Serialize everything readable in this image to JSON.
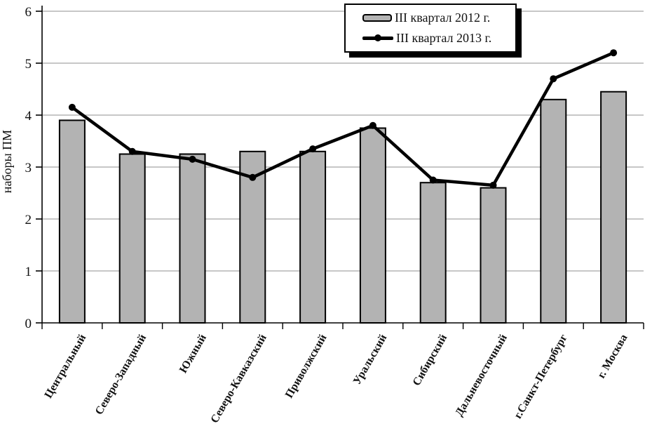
{
  "chart_data": {
    "type": "bar",
    "title": "",
    "xlabel": "",
    "ylabel": "наборы ПМ",
    "ylim": [
      0,
      6
    ],
    "yticks": [
      0,
      1,
      2,
      3,
      4,
      5,
      6
    ],
    "grid": true,
    "legend_position": "top-center",
    "categories": [
      "Центральный",
      "Северо-Западный",
      "Южный",
      "Северо-Кавказский",
      "Приволжский",
      "Уральский",
      "Сибирский",
      "Дальневосточный",
      "г.Санкт-Петербург",
      "г. Москва"
    ],
    "series": [
      {
        "name": "III квартал 2012 г.",
        "type": "bar",
        "color": "#b3b3b3",
        "border_color": "#000000",
        "values": [
          3.9,
          3.25,
          3.25,
          3.3,
          3.3,
          3.75,
          2.7,
          2.6,
          4.3,
          4.45
        ]
      },
      {
        "name": "III квартал 2013 г.",
        "type": "line",
        "color": "#000000",
        "marker": "circle",
        "values": [
          4.15,
          3.3,
          3.15,
          2.8,
          3.35,
          3.8,
          2.75,
          2.65,
          4.7,
          5.2
        ]
      }
    ],
    "colors": {
      "gridline": "#8f8f8f",
      "axis": "#000000",
      "text": "#111111"
    }
  }
}
